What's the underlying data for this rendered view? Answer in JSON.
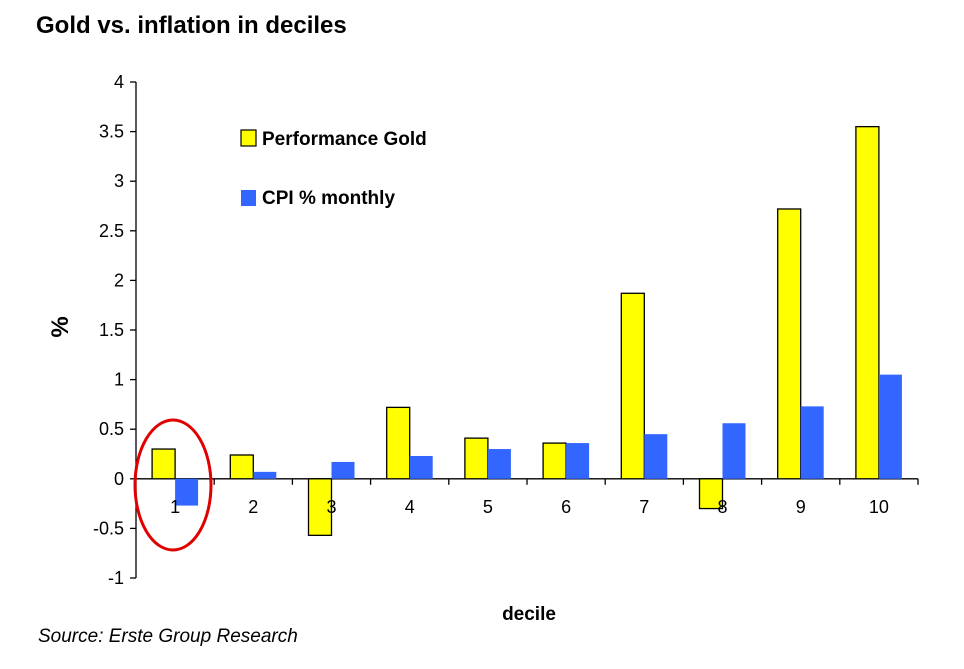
{
  "title": "Gold vs. inflation in deciles",
  "source": "Source: Erste Group Research",
  "colors": {
    "gold": "#ffff00",
    "cpi": "#3366ff",
    "highlight": "#e00000"
  },
  "chart_data": {
    "type": "bar",
    "title": "Gold vs. inflation in deciles",
    "xlabel": "decile",
    "ylabel": "%",
    "categories": [
      "1",
      "2",
      "3",
      "4",
      "5",
      "6",
      "7",
      "8",
      "9",
      "10"
    ],
    "series": [
      {
        "name": "Performance Gold",
        "values": [
          0.3,
          0.24,
          -0.57,
          0.72,
          0.41,
          0.36,
          1.87,
          -0.3,
          2.72,
          3.55
        ]
      },
      {
        "name": "CPI % monthly",
        "values": [
          -0.27,
          0.07,
          0.17,
          0.23,
          0.3,
          0.36,
          0.45,
          0.56,
          0.73,
          1.05
        ]
      }
    ],
    "ylim": [
      -1,
      4
    ],
    "yticks": [
      "-1",
      "-0.5",
      "0",
      "0.5",
      "1",
      "1.5",
      "2",
      "2.5",
      "3",
      "3.5",
      "4"
    ],
    "grid": false,
    "legend_position": "top-left inside plot",
    "annotation": "red circle around decile 1"
  }
}
